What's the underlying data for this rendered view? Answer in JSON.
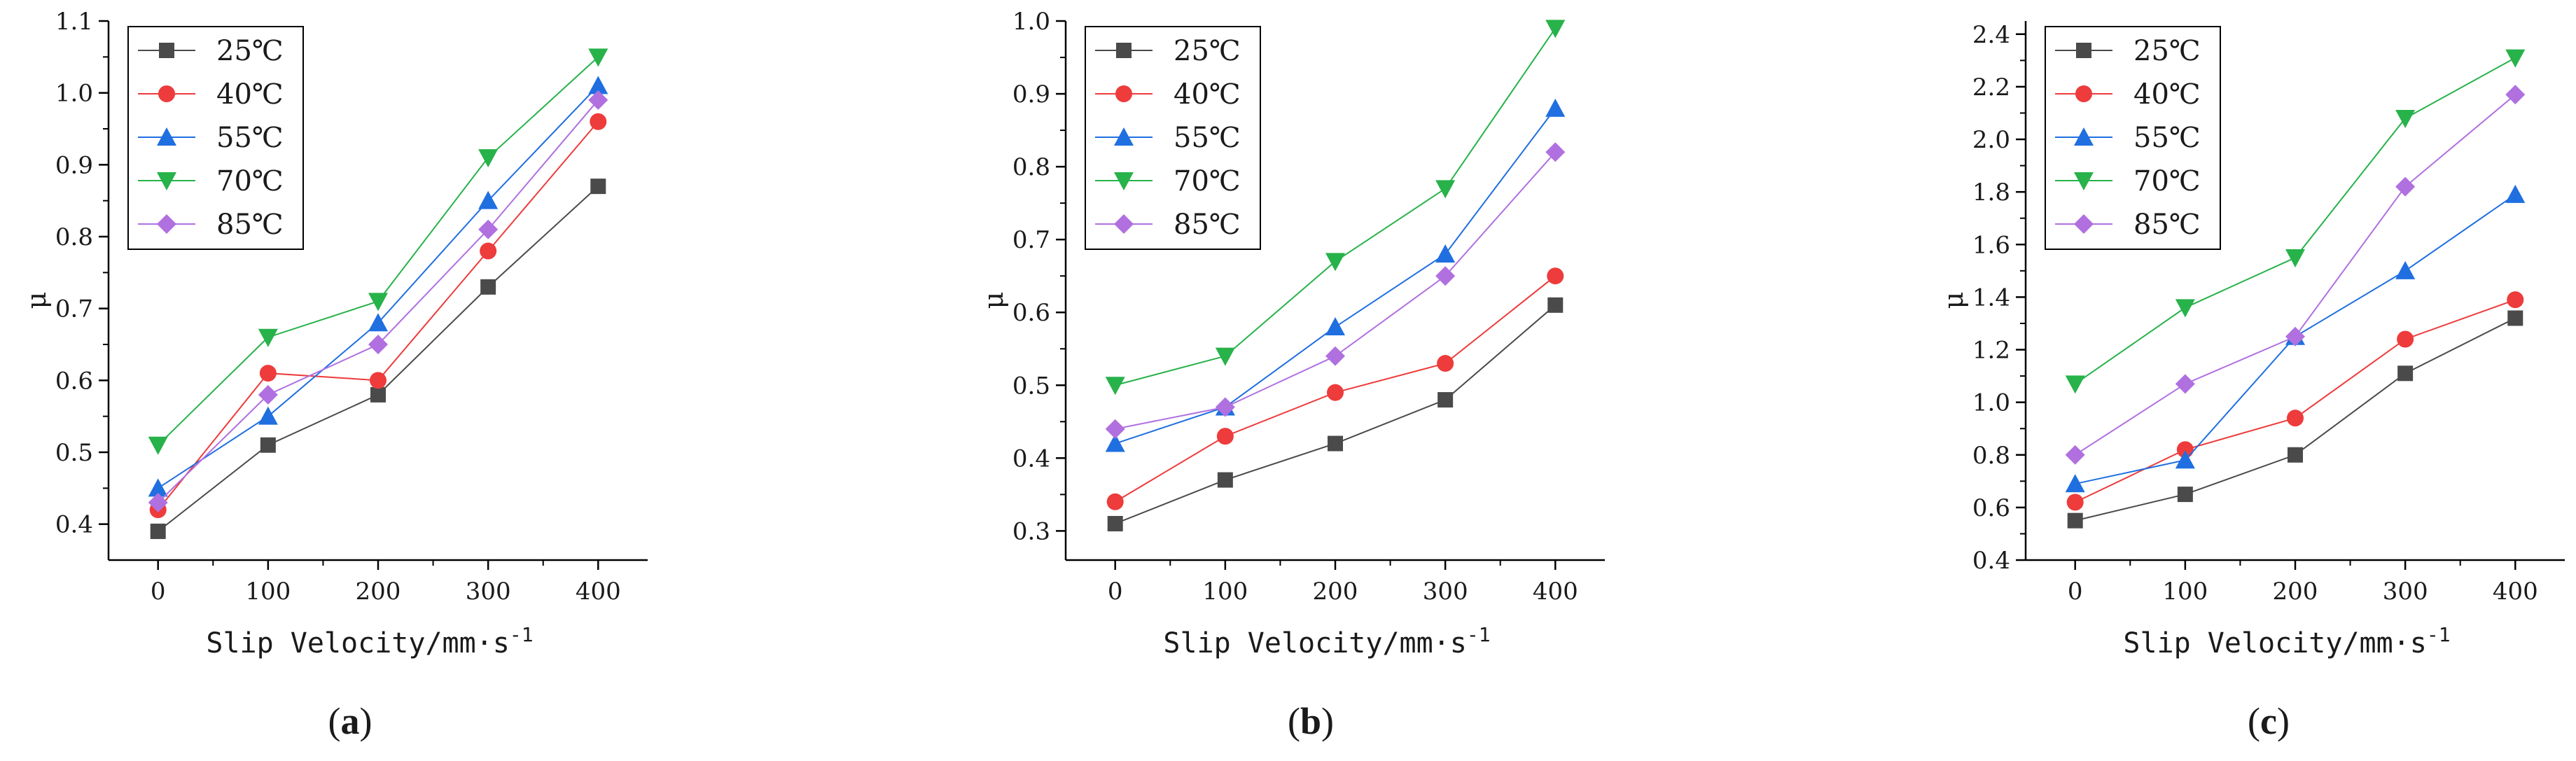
{
  "chart_data": [
    {
      "type": "line",
      "caption": {
        "open": "(",
        "letter": "a",
        "close": ")"
      },
      "xlabel": "Slip Velocity/mm·s",
      "xlabel_sup": "-1",
      "ylabel": "μ",
      "x": [
        0,
        100,
        200,
        300,
        400
      ],
      "xticks": [
        "0",
        "100",
        "200",
        "300",
        "400"
      ],
      "xlim": [
        -45,
        445
      ],
      "ylim": [
        0.35,
        1.1
      ],
      "yticks": [
        "0.4",
        "0.5",
        "0.6",
        "0.7",
        "0.8",
        "0.9",
        "1.0",
        "1.1"
      ],
      "ytick_values": [
        0.4,
        0.5,
        0.6,
        0.7,
        0.8,
        0.9,
        1.0,
        1.1
      ],
      "legend_position": "top-left",
      "series": [
        {
          "name": "25℃",
          "values": [
            0.39,
            0.51,
            0.58,
            0.73,
            0.87
          ]
        },
        {
          "name": "40℃",
          "values": [
            0.42,
            0.61,
            0.6,
            0.78,
            0.96
          ]
        },
        {
          "name": "55℃",
          "values": [
            0.45,
            0.55,
            0.68,
            0.85,
            1.01
          ]
        },
        {
          "name": "70℃",
          "values": [
            0.51,
            0.66,
            0.71,
            0.91,
            1.05
          ]
        },
        {
          "name": "85℃",
          "values": [
            0.43,
            0.58,
            0.65,
            0.81,
            0.99
          ]
        }
      ]
    },
    {
      "type": "line",
      "caption": {
        "open": "(",
        "letter": "b",
        "close": ")"
      },
      "xlabel": "Slip Velocity/mm·s",
      "xlabel_sup": "-1",
      "ylabel": "μ",
      "x": [
        0,
        100,
        200,
        300,
        400
      ],
      "xticks": [
        "0",
        "100",
        "200",
        "300",
        "400"
      ],
      "xlim": [
        -45,
        445
      ],
      "ylim": [
        0.26,
        1.0
      ],
      "yticks": [
        "0.3",
        "0.4",
        "0.5",
        "0.6",
        "0.7",
        "0.8",
        "0.9",
        "1.0"
      ],
      "ytick_values": [
        0.3,
        0.4,
        0.5,
        0.6,
        0.7,
        0.8,
        0.9,
        1.0
      ],
      "legend_position": "top-left",
      "series": [
        {
          "name": "25℃",
          "values": [
            0.31,
            0.37,
            0.42,
            0.48,
            0.61
          ]
        },
        {
          "name": "40℃",
          "values": [
            0.34,
            0.43,
            0.49,
            0.53,
            0.65
          ]
        },
        {
          "name": "55℃",
          "values": [
            0.42,
            0.47,
            0.58,
            0.68,
            0.88
          ]
        },
        {
          "name": "70℃",
          "values": [
            0.5,
            0.54,
            0.67,
            0.77,
            0.99
          ]
        },
        {
          "name": "85℃",
          "values": [
            0.44,
            0.47,
            0.54,
            0.65,
            0.82
          ]
        }
      ]
    },
    {
      "type": "line",
      "caption": {
        "open": "(",
        "letter": "c",
        "close": ")"
      },
      "xlabel": "Slip Velocity/mm·s",
      "xlabel_sup": "-1",
      "ylabel": "μ",
      "x": [
        0,
        100,
        200,
        300,
        400
      ],
      "xticks": [
        "0",
        "100",
        "200",
        "300",
        "400"
      ],
      "xlim": [
        -45,
        445
      ],
      "ylim": [
        0.4,
        2.45
      ],
      "yticks": [
        "0.4",
        "0.6",
        "0.8",
        "1.0",
        "1.2",
        "1.4",
        "1.6",
        "1.8",
        "2.0",
        "2.2",
        "2.4"
      ],
      "ytick_values": [
        0.4,
        0.6,
        0.8,
        1.0,
        1.2,
        1.4,
        1.6,
        1.8,
        2.0,
        2.2,
        2.4
      ],
      "legend_position": "top-left",
      "series": [
        {
          "name": "25℃",
          "values": [
            0.55,
            0.65,
            0.8,
            1.11,
            1.32
          ]
        },
        {
          "name": "40℃",
          "values": [
            0.62,
            0.82,
            0.94,
            1.24,
            1.39
          ]
        },
        {
          "name": "55℃",
          "values": [
            0.69,
            0.78,
            1.25,
            1.5,
            1.79
          ]
        },
        {
          "name": "70℃",
          "values": [
            1.07,
            1.36,
            1.55,
            2.08,
            2.31
          ]
        },
        {
          "name": "85℃",
          "values": [
            0.8,
            1.07,
            1.25,
            1.82,
            2.17
          ]
        }
      ]
    }
  ],
  "series_styles": [
    {
      "marker": "square",
      "color": "#4a4a4a"
    },
    {
      "marker": "circle",
      "color": "#ee3b3b"
    },
    {
      "marker": "triangle-up",
      "color": "#1f6fe0"
    },
    {
      "marker": "triangle-down",
      "color": "#27b24a"
    },
    {
      "marker": "diamond",
      "color": "#b070e0"
    }
  ]
}
